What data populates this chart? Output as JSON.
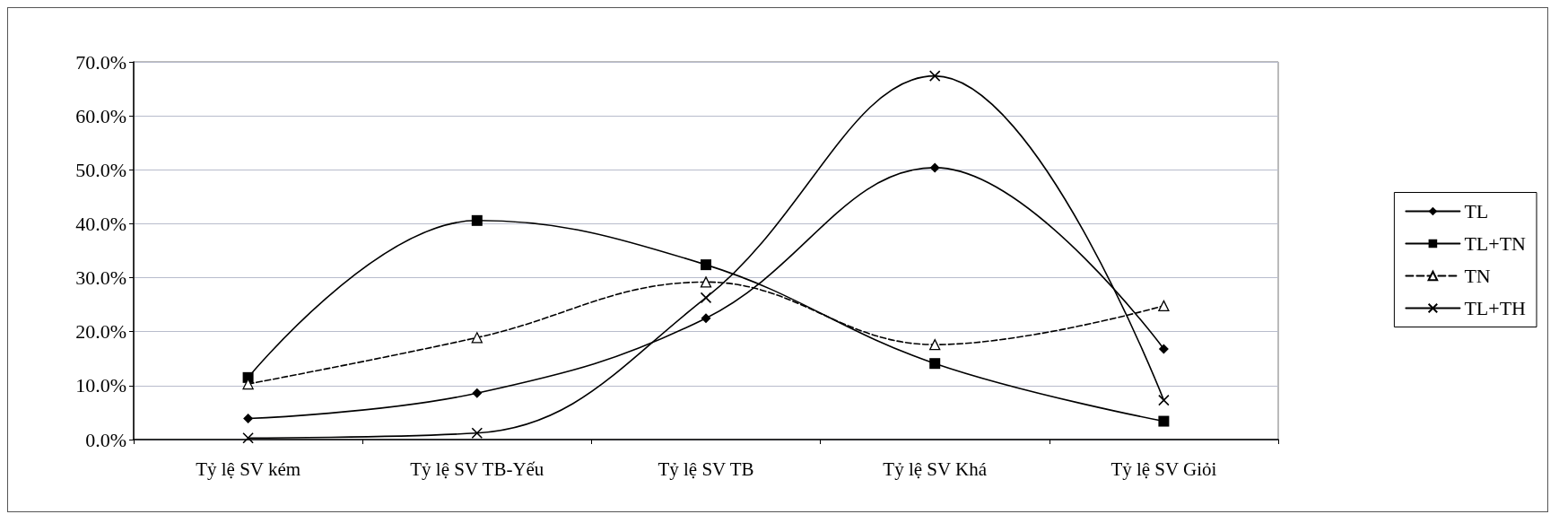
{
  "chart_data": {
    "type": "line",
    "categories": [
      "Tỷ lệ SV kém",
      "Tỷ lệ SV TB-Yếu",
      "Tỷ lệ SV TB",
      "Tỷ lệ SV Khá",
      "Tỷ lệ SV Giỏi"
    ],
    "series": [
      {
        "name": "TL",
        "color": "#000000",
        "marker": "diamond",
        "line_style": "solid",
        "values": [
          3.9,
          8.6,
          22.5,
          50.4,
          16.8
        ]
      },
      {
        "name": "TL+TN",
        "color": "#000000",
        "marker": "square",
        "line_style": "solid",
        "values": [
          11.5,
          40.6,
          32.4,
          14.1,
          3.4
        ]
      },
      {
        "name": "TN",
        "color": "#000000",
        "marker": "triangle",
        "line_style": "dashed",
        "values": [
          10.3,
          18.9,
          29.2,
          17.6,
          24.8
        ]
      },
      {
        "name": "TL+TH",
        "color": "#000000",
        "marker": "cross",
        "line_style": "solid",
        "values": [
          0.3,
          1.2,
          26.3,
          67.4,
          7.3
        ]
      }
    ],
    "ylim": [
      0,
      70
    ],
    "yticks": [
      {
        "value": 0,
        "label": "0.0%"
      },
      {
        "value": 10,
        "label": "10.0%"
      },
      {
        "value": 20,
        "label": "20.0%"
      },
      {
        "value": 30,
        "label": "30.0%"
      },
      {
        "value": 40,
        "label": "40.0%"
      },
      {
        "value": 50,
        "label": "50.0%"
      },
      {
        "value": 60,
        "label": "60.0%"
      },
      {
        "value": 70,
        "label": "70.0%"
      }
    ],
    "grid": "y",
    "legend": "right"
  }
}
